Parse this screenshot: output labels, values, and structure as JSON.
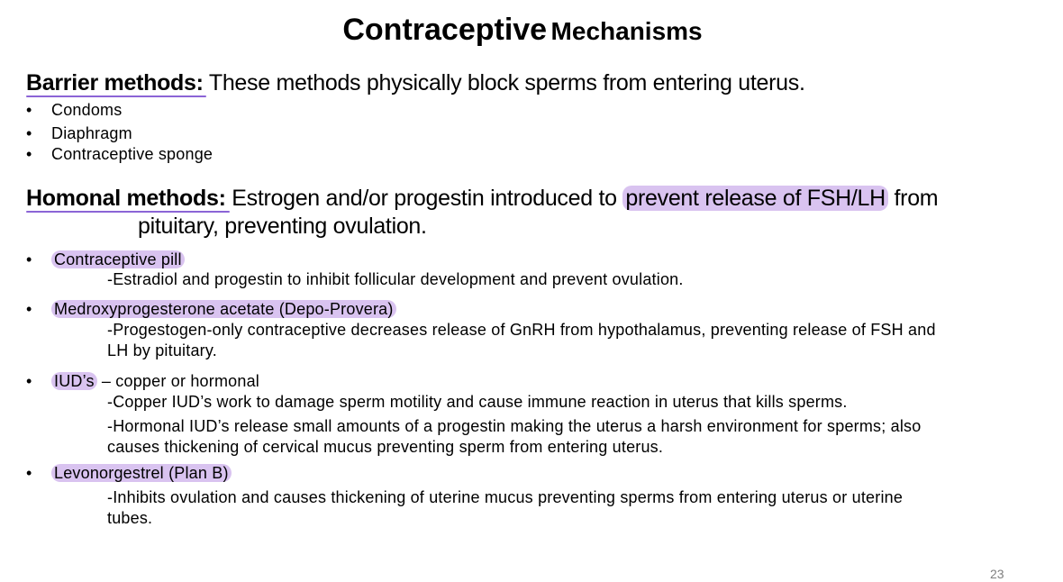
{
  "title": {
    "part1": "Contraceptive",
    "part2": "Mechanisms"
  },
  "barrier": {
    "label": "Barrier methods:",
    "text": "These methods physically block sperms from entering uterus.",
    "items": [
      "Condoms",
      "Diaphragm",
      "Contraceptive sponge"
    ]
  },
  "hormonal": {
    "label": "Homonal methods:",
    "text_pre": "Estrogen and/or progestin introduced to",
    "text_highlight": "prevent release of FSH/LH",
    "text_post": "from",
    "text_line2": "pituitary, preventing ovulation."
  },
  "items": [
    {
      "label": "Contraceptive pill",
      "desc": "-Estradiol and progestin to inhibit follicular development and prevent ovulation."
    },
    {
      "label": "Medroxyprogesterone acetate (Depo-Provera)",
      "desc_line1": "-Progestogen-only contraceptive decreases release of GnRH from hypothalamus, preventing release of FSH and",
      "desc_line2": "LH by pituitary."
    },
    {
      "label": "IUD’s",
      "label_suffix": "– copper or hormonal",
      "desc1": "-Copper IUD’s work to damage sperm motility and cause immune reaction in uterus that kills sperms.",
      "desc2_line1": "-Hormonal IUD’s release small amounts of a progestin making the uterus a harsh environment for sperms; also",
      "desc2_line2": "causes thickening of cervical mucus preventing sperm from entering uterus."
    },
    {
      "label": "Levonorgestrel (Plan B)",
      "desc_line1": "-Inhibits ovulation and causes thickening of uterine mucus preventing sperms from entering uterus or uterine",
      "desc_line2": "tubes."
    }
  ],
  "bullet_char": "•",
  "page_number": "23",
  "colors": {
    "highlight": "#d9c3f0",
    "underline": "#8b64d6"
  }
}
